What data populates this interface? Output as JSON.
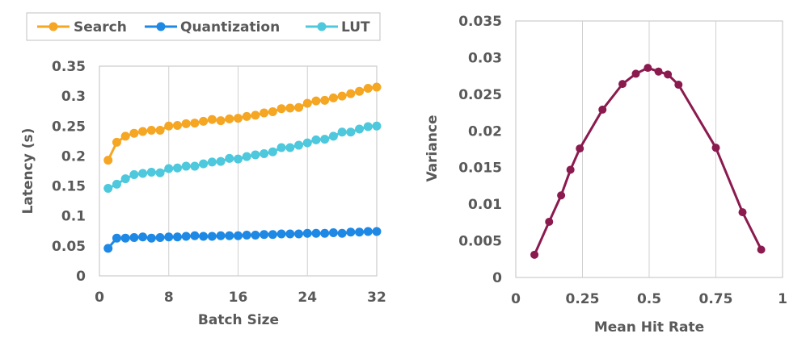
{
  "chart_data": [
    {
      "type": "line",
      "xlabel": "Batch Size",
      "ylabel": "Latency (s)",
      "xlim": [
        0,
        32
      ],
      "ylim": [
        0,
        0.35
      ],
      "xticks": [
        0,
        8,
        16,
        24,
        32
      ],
      "xtick_labels": [
        "0",
        "8",
        "16",
        "24",
        "32"
      ],
      "yticks": [
        0,
        0.05,
        0.1,
        0.15,
        0.2,
        0.25,
        0.3,
        0.35
      ],
      "ytick_labels": [
        "0",
        "0.05",
        "0.1",
        "0.15",
        "0.2",
        "0.25",
        "0.3",
        "0.35"
      ],
      "grid": "vertical",
      "legend": "top",
      "x": [
        1,
        2,
        3,
        4,
        5,
        6,
        7,
        8,
        9,
        10,
        11,
        12,
        13,
        14,
        15,
        16,
        17,
        18,
        19,
        20,
        21,
        22,
        23,
        24,
        25,
        26,
        27,
        28,
        29,
        30,
        31,
        32
      ],
      "series": [
        {
          "name": "Search",
          "color": "#F5A623",
          "values": [
            0.193,
            0.223,
            0.233,
            0.238,
            0.241,
            0.243,
            0.243,
            0.25,
            0.251,
            0.254,
            0.255,
            0.258,
            0.261,
            0.259,
            0.262,
            0.263,
            0.266,
            0.268,
            0.272,
            0.274,
            0.279,
            0.28,
            0.281,
            0.288,
            0.292,
            0.293,
            0.297,
            0.3,
            0.304,
            0.308,
            0.313,
            0.315
          ]
        },
        {
          "name": "Quantization",
          "color": "#1E88E5",
          "values": [
            0.046,
            0.063,
            0.063,
            0.064,
            0.065,
            0.063,
            0.064,
            0.065,
            0.065,
            0.066,
            0.067,
            0.066,
            0.066,
            0.067,
            0.067,
            0.067,
            0.068,
            0.068,
            0.069,
            0.069,
            0.07,
            0.07,
            0.07,
            0.071,
            0.071,
            0.071,
            0.072,
            0.071,
            0.073,
            0.073,
            0.074,
            0.074
          ]
        },
        {
          "name": "LUT",
          "color": "#4DC8DC",
          "values": [
            0.146,
            0.153,
            0.162,
            0.169,
            0.171,
            0.173,
            0.172,
            0.179,
            0.18,
            0.183,
            0.183,
            0.187,
            0.19,
            0.191,
            0.196,
            0.195,
            0.199,
            0.202,
            0.204,
            0.207,
            0.214,
            0.214,
            0.218,
            0.222,
            0.227,
            0.228,
            0.233,
            0.24,
            0.24,
            0.245,
            0.249,
            0.25
          ]
        }
      ]
    },
    {
      "type": "line",
      "xlabel": "Mean Hit Rate",
      "ylabel": "Variance",
      "xlim": [
        0,
        1
      ],
      "ylim": [
        0,
        0.035
      ],
      "xticks": [
        0,
        0.25,
        0.5,
        0.75,
        1
      ],
      "xtick_labels": [
        "0",
        "0.25",
        "0.5",
        "0.75",
        "1"
      ],
      "yticks": [
        0,
        0.005,
        0.01,
        0.015,
        0.02,
        0.025,
        0.03,
        0.035
      ],
      "ytick_labels": [
        "0",
        "0.005",
        "0.01",
        "0.015",
        "0.02",
        "0.025",
        "0.03",
        "0.035"
      ],
      "grid": "vertical",
      "series": [
        {
          "name": "Variance",
          "color": "#8B1A4F",
          "x": [
            0.07,
            0.125,
            0.17,
            0.205,
            0.24,
            0.325,
            0.4,
            0.45,
            0.495,
            0.535,
            0.57,
            0.61,
            0.75,
            0.85,
            0.92
          ],
          "values": [
            0.0031,
            0.0076,
            0.0112,
            0.0147,
            0.0176,
            0.0229,
            0.0264,
            0.0278,
            0.0286,
            0.0281,
            0.0277,
            0.0263,
            0.0177,
            0.0089,
            0.0038
          ]
        }
      ]
    }
  ]
}
